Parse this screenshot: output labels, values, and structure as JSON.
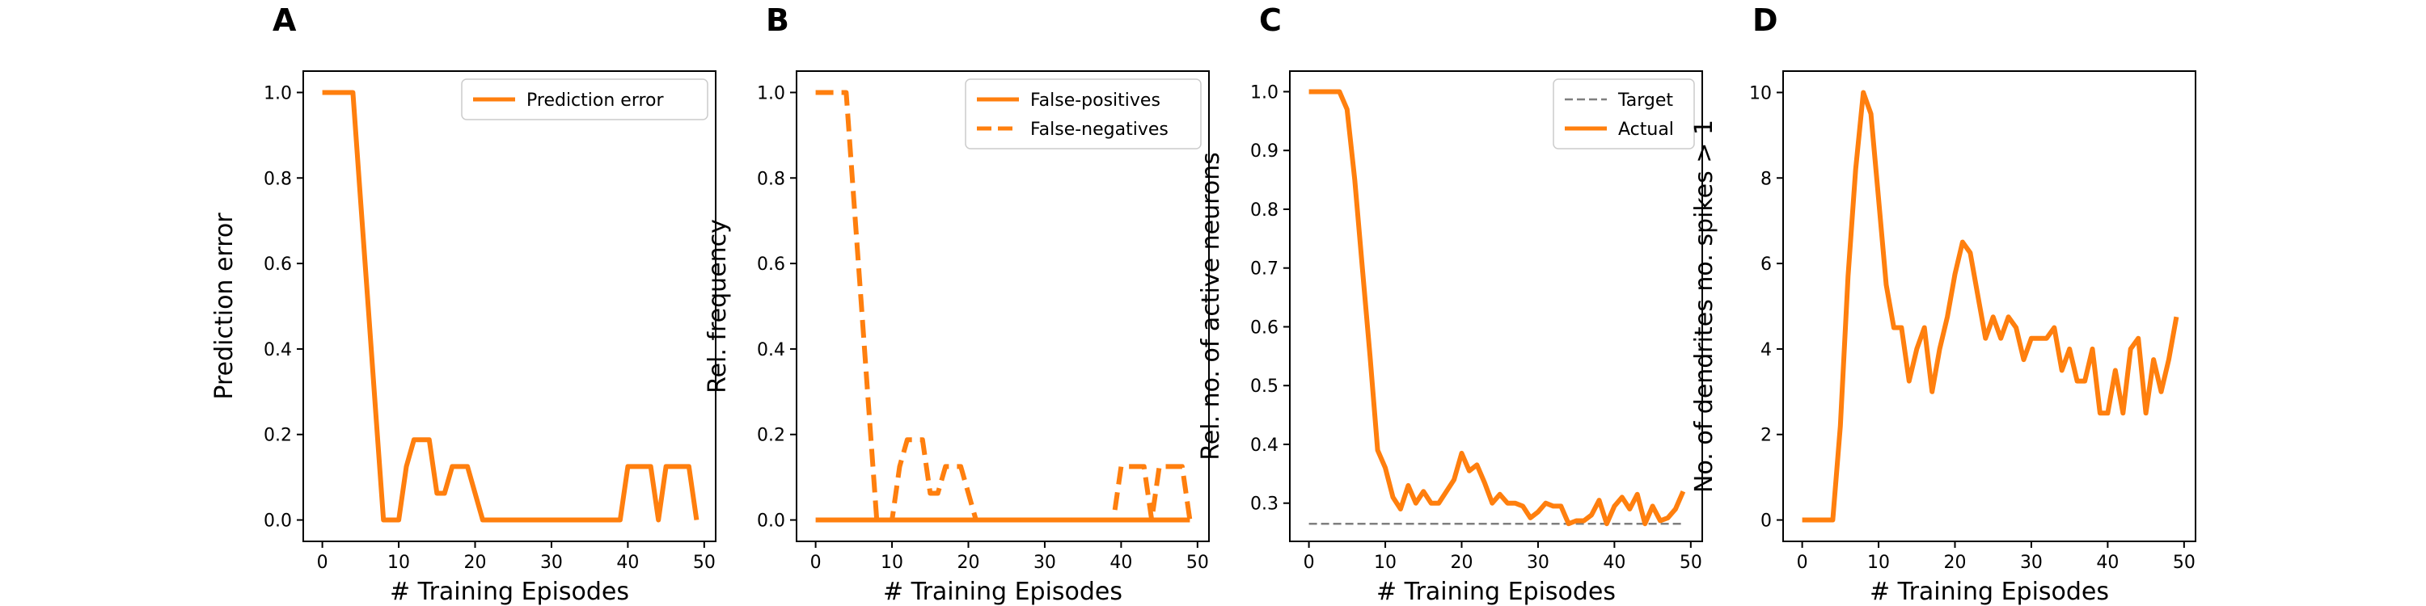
{
  "colors": {
    "series": "#ff7f0e",
    "target": "#7f7f7f"
  },
  "chart_data": [
    {
      "panel": "A",
      "type": "line",
      "xlabel": "# Training Episodes",
      "ylabel": "Prediction error",
      "xlim": [
        -2.5,
        51.5
      ],
      "ylim": [
        -0.05,
        1.05
      ],
      "xticks": [
        0,
        10,
        20,
        30,
        40,
        50
      ],
      "yticks": [
        0.0,
        0.2,
        0.4,
        0.6,
        0.8,
        1.0
      ],
      "yticklabels": [
        "0.0",
        "0.2",
        "0.4",
        "0.6",
        "0.8",
        "1.0"
      ],
      "legend": "top-right",
      "x": [
        0,
        1,
        2,
        3,
        4,
        5,
        6,
        7,
        8,
        9,
        10,
        11,
        12,
        13,
        14,
        15,
        16,
        17,
        18,
        19,
        20,
        21,
        22,
        23,
        24,
        25,
        26,
        27,
        28,
        29,
        30,
        31,
        32,
        33,
        34,
        35,
        36,
        37,
        38,
        39,
        40,
        41,
        42,
        43,
        44,
        45,
        46,
        47,
        48,
        49
      ],
      "series": [
        {
          "name": "Prediction error",
          "style": "solid",
          "color": "#ff7f0e",
          "values": [
            1,
            1,
            1,
            1,
            1,
            0.75,
            0.5,
            0.25,
            0,
            0,
            0,
            0.125,
            0.1875,
            0.1875,
            0.1875,
            0.0625,
            0.0625,
            0.125,
            0.125,
            0.125,
            0.0625,
            0,
            0,
            0,
            0,
            0,
            0,
            0,
            0,
            0,
            0,
            0,
            0,
            0,
            0,
            0,
            0,
            0,
            0,
            0,
            0.125,
            0.125,
            0.125,
            0.125,
            0,
            0.125,
            0.125,
            0.125,
            0.125,
            0
          ]
        }
      ]
    },
    {
      "panel": "B",
      "type": "line",
      "xlabel": "# Training Episodes",
      "ylabel": "Rel. frequency",
      "xlim": [
        -2.5,
        51.5
      ],
      "ylim": [
        -0.05,
        1.05
      ],
      "xticks": [
        0,
        10,
        20,
        30,
        40,
        50
      ],
      "yticks": [
        0.0,
        0.2,
        0.4,
        0.6,
        0.8,
        1.0
      ],
      "yticklabels": [
        "0.0",
        "0.2",
        "0.4",
        "0.6",
        "0.8",
        "1.0"
      ],
      "legend": "top-right",
      "x": [
        0,
        1,
        2,
        3,
        4,
        5,
        6,
        7,
        8,
        9,
        10,
        11,
        12,
        13,
        14,
        15,
        16,
        17,
        18,
        19,
        20,
        21,
        22,
        23,
        24,
        25,
        26,
        27,
        28,
        29,
        30,
        31,
        32,
        33,
        34,
        35,
        36,
        37,
        38,
        39,
        40,
        41,
        42,
        43,
        44,
        45,
        46,
        47,
        48,
        49
      ],
      "series": [
        {
          "name": "False-positives",
          "style": "solid",
          "color": "#ff7f0e",
          "values": [
            0,
            0,
            0,
            0,
            0,
            0,
            0,
            0,
            0,
            0,
            0,
            0,
            0,
            0,
            0,
            0,
            0,
            0,
            0,
            0,
            0,
            0,
            0,
            0,
            0,
            0,
            0,
            0,
            0,
            0,
            0,
            0,
            0,
            0,
            0,
            0,
            0,
            0,
            0,
            0,
            0,
            0,
            0,
            0,
            0,
            0,
            0,
            0,
            0,
            0
          ]
        },
        {
          "name": "False-negatives",
          "style": "dashed",
          "color": "#ff7f0e",
          "values": [
            1,
            1,
            1,
            1,
            1,
            0.75,
            0.5,
            0.25,
            0,
            0,
            0,
            0.125,
            0.1875,
            0.1875,
            0.1875,
            0.0625,
            0.0625,
            0.125,
            0.125,
            0.125,
            0.0625,
            0,
            0,
            0,
            0,
            0,
            0,
            0,
            0,
            0,
            0,
            0,
            0,
            0,
            0,
            0,
            0,
            0,
            0,
            0,
            0.125,
            0.125,
            0.125,
            0.125,
            0,
            0.125,
            0.125,
            0.125,
            0.125,
            0
          ]
        }
      ]
    },
    {
      "panel": "C",
      "type": "line",
      "xlabel": "# Training Episodes",
      "ylabel": "Rel. no. of active neurons",
      "xlim": [
        -2.5,
        51.5
      ],
      "ylim": [
        0.235,
        1.035
      ],
      "xticks": [
        0,
        10,
        20,
        30,
        40,
        50
      ],
      "yticks": [
        0.3,
        0.4,
        0.5,
        0.6,
        0.7,
        0.8,
        0.9,
        1.0
      ],
      "yticklabels": [
        "0.3",
        "0.4",
        "0.5",
        "0.6",
        "0.7",
        "0.8",
        "0.9",
        "1.0"
      ],
      "legend": "top-right",
      "x": [
        0,
        1,
        2,
        3,
        4,
        5,
        6,
        7,
        8,
        9,
        10,
        11,
        12,
        13,
        14,
        15,
        16,
        17,
        18,
        19,
        20,
        21,
        22,
        23,
        24,
        25,
        26,
        27,
        28,
        29,
        30,
        31,
        32,
        33,
        34,
        35,
        36,
        37,
        38,
        39,
        40,
        41,
        42,
        43,
        44,
        45,
        46,
        47,
        48,
        49
      ],
      "series": [
        {
          "name": "Target",
          "style": "dashed",
          "color": "#7f7f7f",
          "values": [
            0.265,
            0.265,
            0.265,
            0.265,
            0.265,
            0.265,
            0.265,
            0.265,
            0.265,
            0.265,
            0.265,
            0.265,
            0.265,
            0.265,
            0.265,
            0.265,
            0.265,
            0.265,
            0.265,
            0.265,
            0.265,
            0.265,
            0.265,
            0.265,
            0.265,
            0.265,
            0.265,
            0.265,
            0.265,
            0.265,
            0.265,
            0.265,
            0.265,
            0.265,
            0.265,
            0.265,
            0.265,
            0.265,
            0.265,
            0.265,
            0.265,
            0.265,
            0.265,
            0.265,
            0.265,
            0.265,
            0.265,
            0.265,
            0.265,
            0.265
          ]
        },
        {
          "name": "Actual",
          "style": "solid",
          "color": "#ff7f0e",
          "values": [
            1.0,
            1.0,
            1.0,
            1.0,
            1.0,
            0.97,
            0.85,
            0.7,
            0.55,
            0.39,
            0.36,
            0.31,
            0.29,
            0.33,
            0.3,
            0.32,
            0.3,
            0.3,
            0.32,
            0.34,
            0.385,
            0.355,
            0.365,
            0.335,
            0.3,
            0.315,
            0.3,
            0.3,
            0.295,
            0.275,
            0.285,
            0.3,
            0.295,
            0.295,
            0.265,
            0.27,
            0.27,
            0.28,
            0.305,
            0.265,
            0.295,
            0.31,
            0.29,
            0.315,
            0.265,
            0.295,
            0.27,
            0.275,
            0.29,
            0.32
          ]
        }
      ]
    },
    {
      "panel": "D",
      "type": "line",
      "xlabel": "# Training Episodes",
      "ylabel": "No. of dendrites no. spikes > 1",
      "xlim": [
        -2.5,
        51.5
      ],
      "ylim": [
        -0.5,
        10.5
      ],
      "xticks": [
        0,
        10,
        20,
        30,
        40,
        50
      ],
      "yticks": [
        0,
        2,
        4,
        6,
        8,
        10
      ],
      "yticklabels": [
        "0",
        "2",
        "4",
        "6",
        "8",
        "10"
      ],
      "legend": null,
      "x": [
        0,
        1,
        2,
        3,
        4,
        5,
        6,
        7,
        8,
        9,
        10,
        11,
        12,
        13,
        14,
        15,
        16,
        17,
        18,
        19,
        20,
        21,
        22,
        23,
        24,
        25,
        26,
        27,
        28,
        29,
        30,
        31,
        32,
        33,
        34,
        35,
        36,
        37,
        38,
        39,
        40,
        41,
        42,
        43,
        44,
        45,
        46,
        47,
        48,
        49
      ],
      "series": [
        {
          "name": "",
          "style": "solid",
          "color": "#ff7f0e",
          "values": [
            0,
            0,
            0,
            0,
            0,
            2.2,
            5.7,
            8.2,
            10.0,
            9.5,
            7.5,
            5.5,
            4.5,
            4.5,
            3.25,
            4.0,
            4.5,
            3.0,
            4.0,
            4.75,
            5.75,
            6.5,
            6.25,
            5.25,
            4.25,
            4.75,
            4.25,
            4.75,
            4.5,
            3.75,
            4.25,
            4.25,
            4.25,
            4.5,
            3.5,
            4.0,
            3.25,
            3.25,
            4.0,
            2.5,
            2.5,
            3.5,
            2.5,
            4.0,
            4.25,
            2.5,
            3.75,
            3.0,
            3.75,
            4.75
          ]
        }
      ]
    }
  ]
}
